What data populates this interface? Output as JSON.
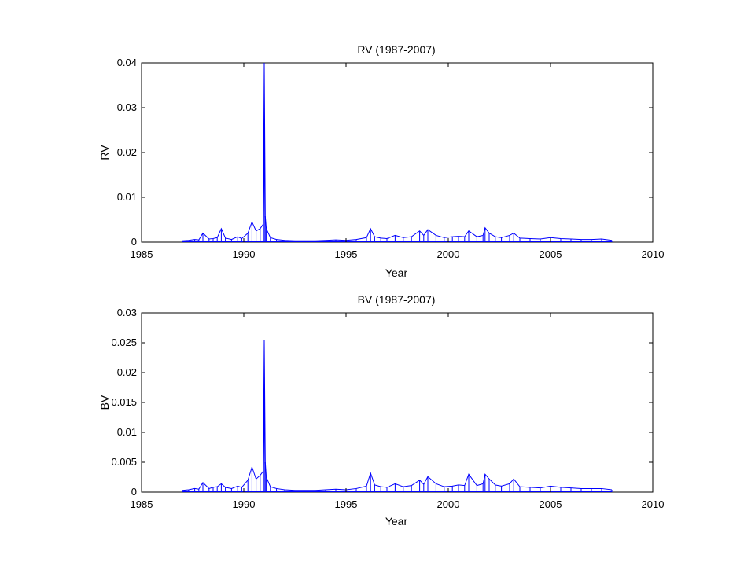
{
  "chart_data": [
    {
      "type": "line",
      "title": "RV (1987-2007)",
      "xlabel": "Year",
      "ylabel": "RV",
      "xlim": [
        1985,
        2010
      ],
      "ylim": [
        0,
        0.04
      ],
      "x_ticks": [
        "1985",
        "1990",
        "1995",
        "2000",
        "2005",
        "2010"
      ],
      "y_ticks": [
        "0",
        "0.01",
        "0.02",
        "0.03",
        "0.04"
      ],
      "grid": false,
      "line_color": "#0000ff",
      "series": [
        {
          "x": [
            1987.0,
            1987.3,
            1987.6,
            1987.8,
            1988.0,
            1988.3,
            1988.5,
            1988.7,
            1988.9,
            1989.1,
            1989.4,
            1989.7,
            1989.9,
            1990.2,
            1990.4,
            1990.6,
            1990.8,
            1990.95,
            1991.0,
            1991.05,
            1991.1,
            1991.3,
            1991.6,
            1992.0,
            1992.5,
            1993.0,
            1993.5,
            1994.0,
            1994.5,
            1995.0,
            1995.5,
            1996.0,
            1996.2,
            1996.4,
            1996.7,
            1997.0,
            1997.4,
            1997.8,
            1998.2,
            1998.6,
            1998.8,
            1999.0,
            1999.4,
            1999.8,
            2000.2,
            2000.5,
            2000.8,
            2001.0,
            2001.4,
            2001.7,
            2001.8,
            2002.0,
            2002.3,
            2002.6,
            2003.0,
            2003.2,
            2003.5,
            2004.0,
            2004.5,
            2005.0,
            2005.5,
            2006.0,
            2006.5,
            2007.0,
            2007.5,
            2008.0
          ],
          "y": [
            0.0003,
            0.0004,
            0.0006,
            0.0005,
            0.002,
            0.0007,
            0.0008,
            0.001,
            0.003,
            0.0009,
            0.0006,
            0.0012,
            0.0008,
            0.002,
            0.0045,
            0.0025,
            0.003,
            0.004,
            0.04,
            0.0058,
            0.003,
            0.001,
            0.0006,
            0.0004,
            0.0003,
            0.0003,
            0.0003,
            0.0004,
            0.0005,
            0.0004,
            0.0006,
            0.001,
            0.003,
            0.0012,
            0.0009,
            0.0008,
            0.0015,
            0.001,
            0.0012,
            0.0025,
            0.0015,
            0.0028,
            0.0015,
            0.001,
            0.0012,
            0.0013,
            0.0012,
            0.0025,
            0.0012,
            0.0015,
            0.0032,
            0.002,
            0.0012,
            0.001,
            0.0015,
            0.002,
            0.0009,
            0.0008,
            0.0007,
            0.001,
            0.0008,
            0.0007,
            0.0006,
            0.0006,
            0.0007,
            0.0004
          ]
        }
      ]
    },
    {
      "type": "line",
      "title": "BV (1987-2007)",
      "xlabel": "Year",
      "ylabel": "BV",
      "xlim": [
        1985,
        2010
      ],
      "ylim": [
        0,
        0.03
      ],
      "x_ticks": [
        "1985",
        "1990",
        "1995",
        "2000",
        "2005",
        "2010"
      ],
      "y_ticks": [
        "0",
        "0.005",
        "0.01",
        "0.015",
        "0.02",
        "0.025",
        "0.03"
      ],
      "grid": false,
      "line_color": "#0000ff",
      "series": [
        {
          "x": [
            1987.0,
            1987.3,
            1987.6,
            1987.8,
            1988.0,
            1988.3,
            1988.5,
            1988.7,
            1988.9,
            1989.1,
            1989.4,
            1989.7,
            1989.9,
            1990.2,
            1990.4,
            1990.6,
            1990.8,
            1990.95,
            1991.0,
            1991.05,
            1991.1,
            1991.3,
            1991.6,
            1992.0,
            1992.5,
            1993.0,
            1993.5,
            1994.0,
            1994.5,
            1995.0,
            1995.5,
            1996.0,
            1996.2,
            1996.4,
            1996.7,
            1997.0,
            1997.4,
            1997.8,
            1998.2,
            1998.6,
            1998.8,
            1999.0,
            1999.4,
            1999.8,
            2000.2,
            2000.5,
            2000.8,
            2001.0,
            2001.4,
            2001.7,
            2001.8,
            2002.0,
            2002.3,
            2002.6,
            2003.0,
            2003.2,
            2003.5,
            2004.0,
            2004.5,
            2005.0,
            2005.5,
            2006.0,
            2006.5,
            2007.0,
            2007.5,
            2008.0
          ],
          "y": [
            0.0003,
            0.0004,
            0.0006,
            0.0005,
            0.0016,
            0.0006,
            0.0008,
            0.0009,
            0.0014,
            0.0008,
            0.0006,
            0.001,
            0.0008,
            0.002,
            0.0042,
            0.0022,
            0.0028,
            0.0035,
            0.0255,
            0.005,
            0.0025,
            0.0009,
            0.0006,
            0.0004,
            0.0003,
            0.0003,
            0.0003,
            0.0004,
            0.0005,
            0.0004,
            0.0006,
            0.001,
            0.0032,
            0.0012,
            0.0009,
            0.0008,
            0.0014,
            0.0009,
            0.0011,
            0.002,
            0.0013,
            0.0026,
            0.0014,
            0.0009,
            0.001,
            0.0012,
            0.0011,
            0.003,
            0.0011,
            0.0014,
            0.003,
            0.0022,
            0.0012,
            0.001,
            0.0014,
            0.0022,
            0.0009,
            0.0008,
            0.0007,
            0.001,
            0.0008,
            0.0007,
            0.0006,
            0.0006,
            0.0006,
            0.0004
          ]
        }
      ]
    }
  ]
}
